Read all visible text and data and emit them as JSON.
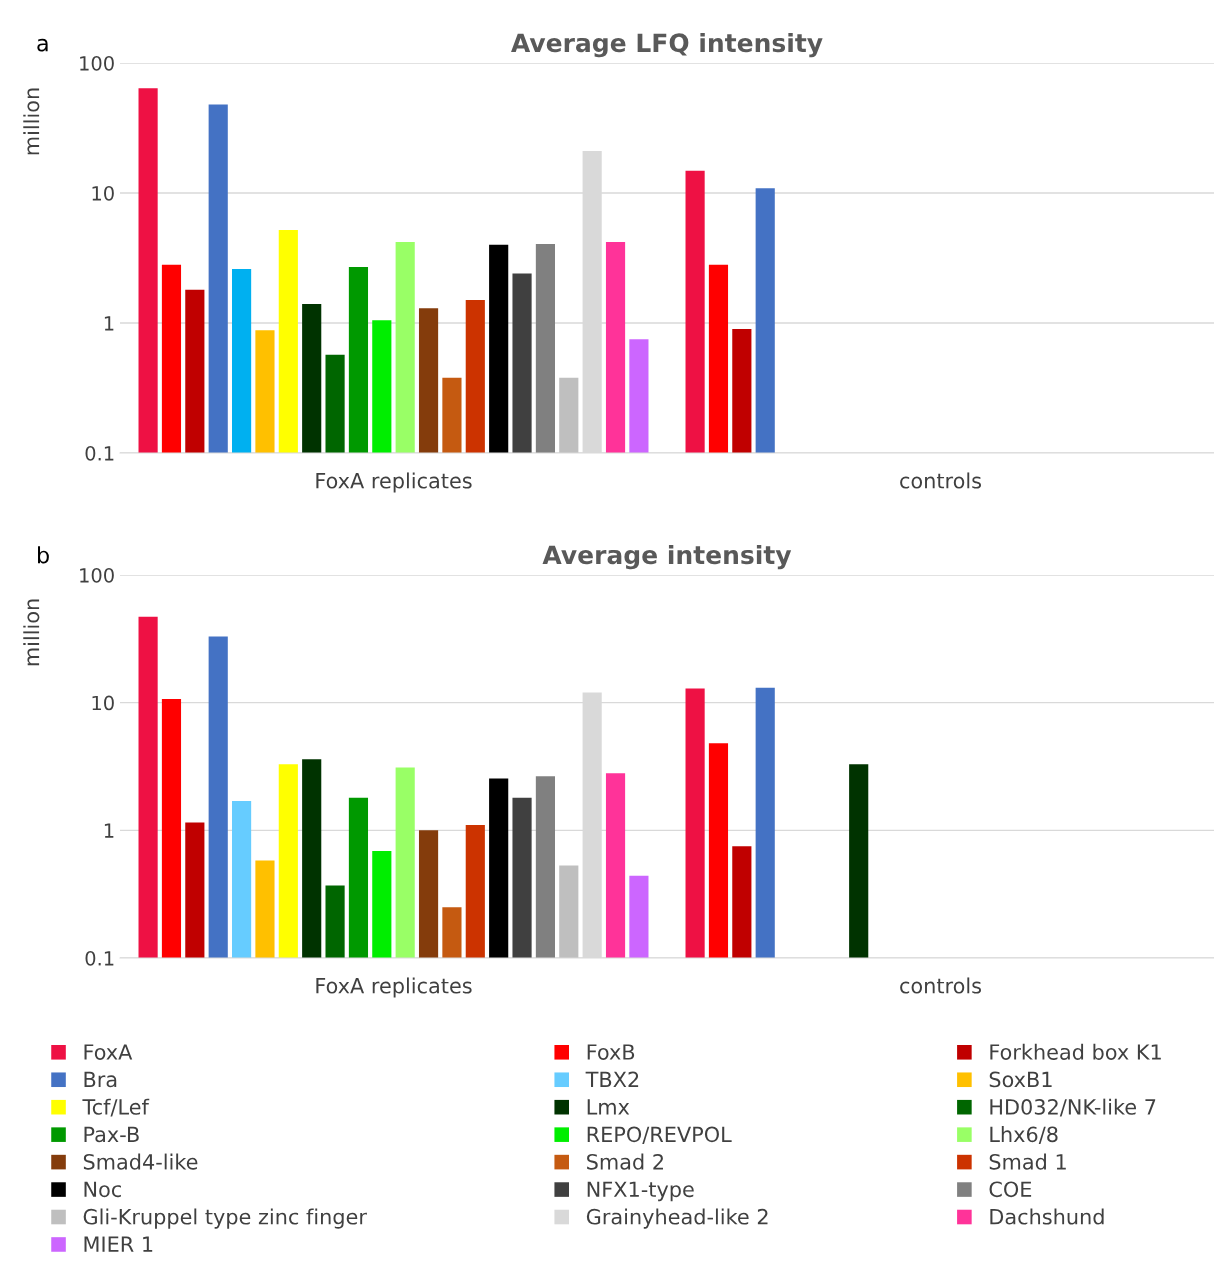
{
  "chart_data": [
    {
      "type": "bar",
      "title": "Average LFQ intensity",
      "ylabel": "million",
      "annotations": [
        "a"
      ],
      "categories": [
        "FoxA replicates",
        "controls"
      ],
      "log": "y",
      "ylim": [
        0.1,
        100
      ],
      "yticks": [
        0.1,
        1,
        10,
        100
      ],
      "grid": "y",
      "series": [
        {
          "color": "#ee1144",
          "values": [
            64,
            14.8
          ]
        },
        {
          "color": "#ff0000",
          "values": [
            2.8,
            2.8
          ]
        },
        {
          "color": "#c00000",
          "values": [
            1.8,
            0.9
          ]
        },
        {
          "color": "#4472c4",
          "values": [
            48,
            10.9
          ]
        },
        {
          "color": "#00b0f0",
          "values": [
            2.6,
            null
          ]
        },
        {
          "color": "#ffc000",
          "values": [
            0.88,
            null
          ]
        },
        {
          "color": "#ffff00",
          "values": [
            5.2,
            null
          ]
        },
        {
          "color": "#003300",
          "values": [
            1.4,
            null
          ]
        },
        {
          "color": "#006600",
          "values": [
            0.57,
            null
          ]
        },
        {
          "color": "#009900",
          "values": [
            2.7,
            null
          ]
        },
        {
          "color": "#00ee00",
          "values": [
            1.05,
            null
          ]
        },
        {
          "color": "#99ff66",
          "values": [
            4.2,
            null
          ]
        },
        {
          "color": "#843c0c",
          "values": [
            1.3,
            null
          ]
        },
        {
          "color": "#c55a11",
          "values": [
            0.38,
            null
          ]
        },
        {
          "color": "#cc3300",
          "values": [
            1.5,
            null
          ]
        },
        {
          "color": "#000000",
          "values": [
            4.0,
            null
          ]
        },
        {
          "color": "#404040",
          "values": [
            2.4,
            null
          ]
        },
        {
          "color": "#808080",
          "values": [
            4.05,
            null
          ]
        },
        {
          "color": "#bfbfbf",
          "values": [
            0.38,
            null
          ]
        },
        {
          "color": "#d9d9d9",
          "values": [
            21,
            null
          ]
        },
        {
          "color": "#ff3399",
          "values": [
            4.2,
            null
          ]
        },
        {
          "color": "#cc66ff",
          "values": [
            0.75,
            null
          ]
        }
      ]
    },
    {
      "type": "bar",
      "title": "Average intensity",
      "ylabel": "million",
      "annotations": [
        "b"
      ],
      "categories": [
        "FoxA replicates",
        "controls"
      ],
      "log": "y",
      "ylim": [
        0.1,
        100
      ],
      "yticks": [
        0.1,
        1,
        10,
        100
      ],
      "grid": "y",
      "legend": "bottom",
      "series": [
        {
          "name": "FoxA",
          "color": "#ee1144",
          "values": [
            47,
            12.9
          ]
        },
        {
          "name": "FoxB",
          "color": "#ff0000",
          "values": [
            10.7,
            4.8
          ]
        },
        {
          "name": "Forkhead box K1",
          "color": "#c00000",
          "values": [
            1.15,
            0.75
          ]
        },
        {
          "name": "Bra",
          "color": "#4472c4",
          "values": [
            33,
            13.1
          ]
        },
        {
          "name": "TBX2",
          "color": "#66ccff",
          "values": [
            1.7,
            null
          ]
        },
        {
          "name": "SoxB1",
          "color": "#ffc000",
          "values": [
            0.58,
            null
          ]
        },
        {
          "name": "Tcf/Lef",
          "color": "#ffff00",
          "values": [
            3.3,
            null
          ]
        },
        {
          "name": "Lmx",
          "color": "#003300",
          "values": [
            3.6,
            3.3
          ]
        },
        {
          "name": "HD032/NK-like 7",
          "color": "#006600",
          "values": [
            0.37,
            null
          ]
        },
        {
          "name": "Pax-B",
          "color": "#009900",
          "values": [
            1.8,
            null
          ]
        },
        {
          "name": "REPO/REVPOL",
          "color": "#00ee00",
          "values": [
            0.69,
            null
          ]
        },
        {
          "name": "Lhx6/8",
          "color": "#99ff66",
          "values": [
            3.1,
            null
          ]
        },
        {
          "name": "Smad4-like",
          "color": "#843c0c",
          "values": [
            1.0,
            null
          ]
        },
        {
          "name": "Smad 2",
          "color": "#c55a11",
          "values": [
            0.25,
            null
          ]
        },
        {
          "name": "Smad 1",
          "color": "#cc3300",
          "values": [
            1.1,
            null
          ]
        },
        {
          "name": "Noc",
          "color": "#000000",
          "values": [
            2.55,
            null
          ]
        },
        {
          "name": "NFX1-type",
          "color": "#404040",
          "values": [
            1.8,
            null
          ]
        },
        {
          "name": "COE",
          "color": "#808080",
          "values": [
            2.65,
            null
          ]
        },
        {
          "name": "Gli-Kruppel type zinc finger",
          "color": "#bfbfbf",
          "values": [
            0.53,
            null
          ]
        },
        {
          "name": "Grainyhead-like 2",
          "color": "#d9d9d9",
          "values": [
            12,
            null
          ]
        },
        {
          "name": "Dachshund",
          "color": "#ff3399",
          "values": [
            2.8,
            null
          ]
        },
        {
          "name": "MIER 1",
          "color": "#cc66ff",
          "values": [
            0.44,
            null
          ]
        }
      ]
    }
  ]
}
